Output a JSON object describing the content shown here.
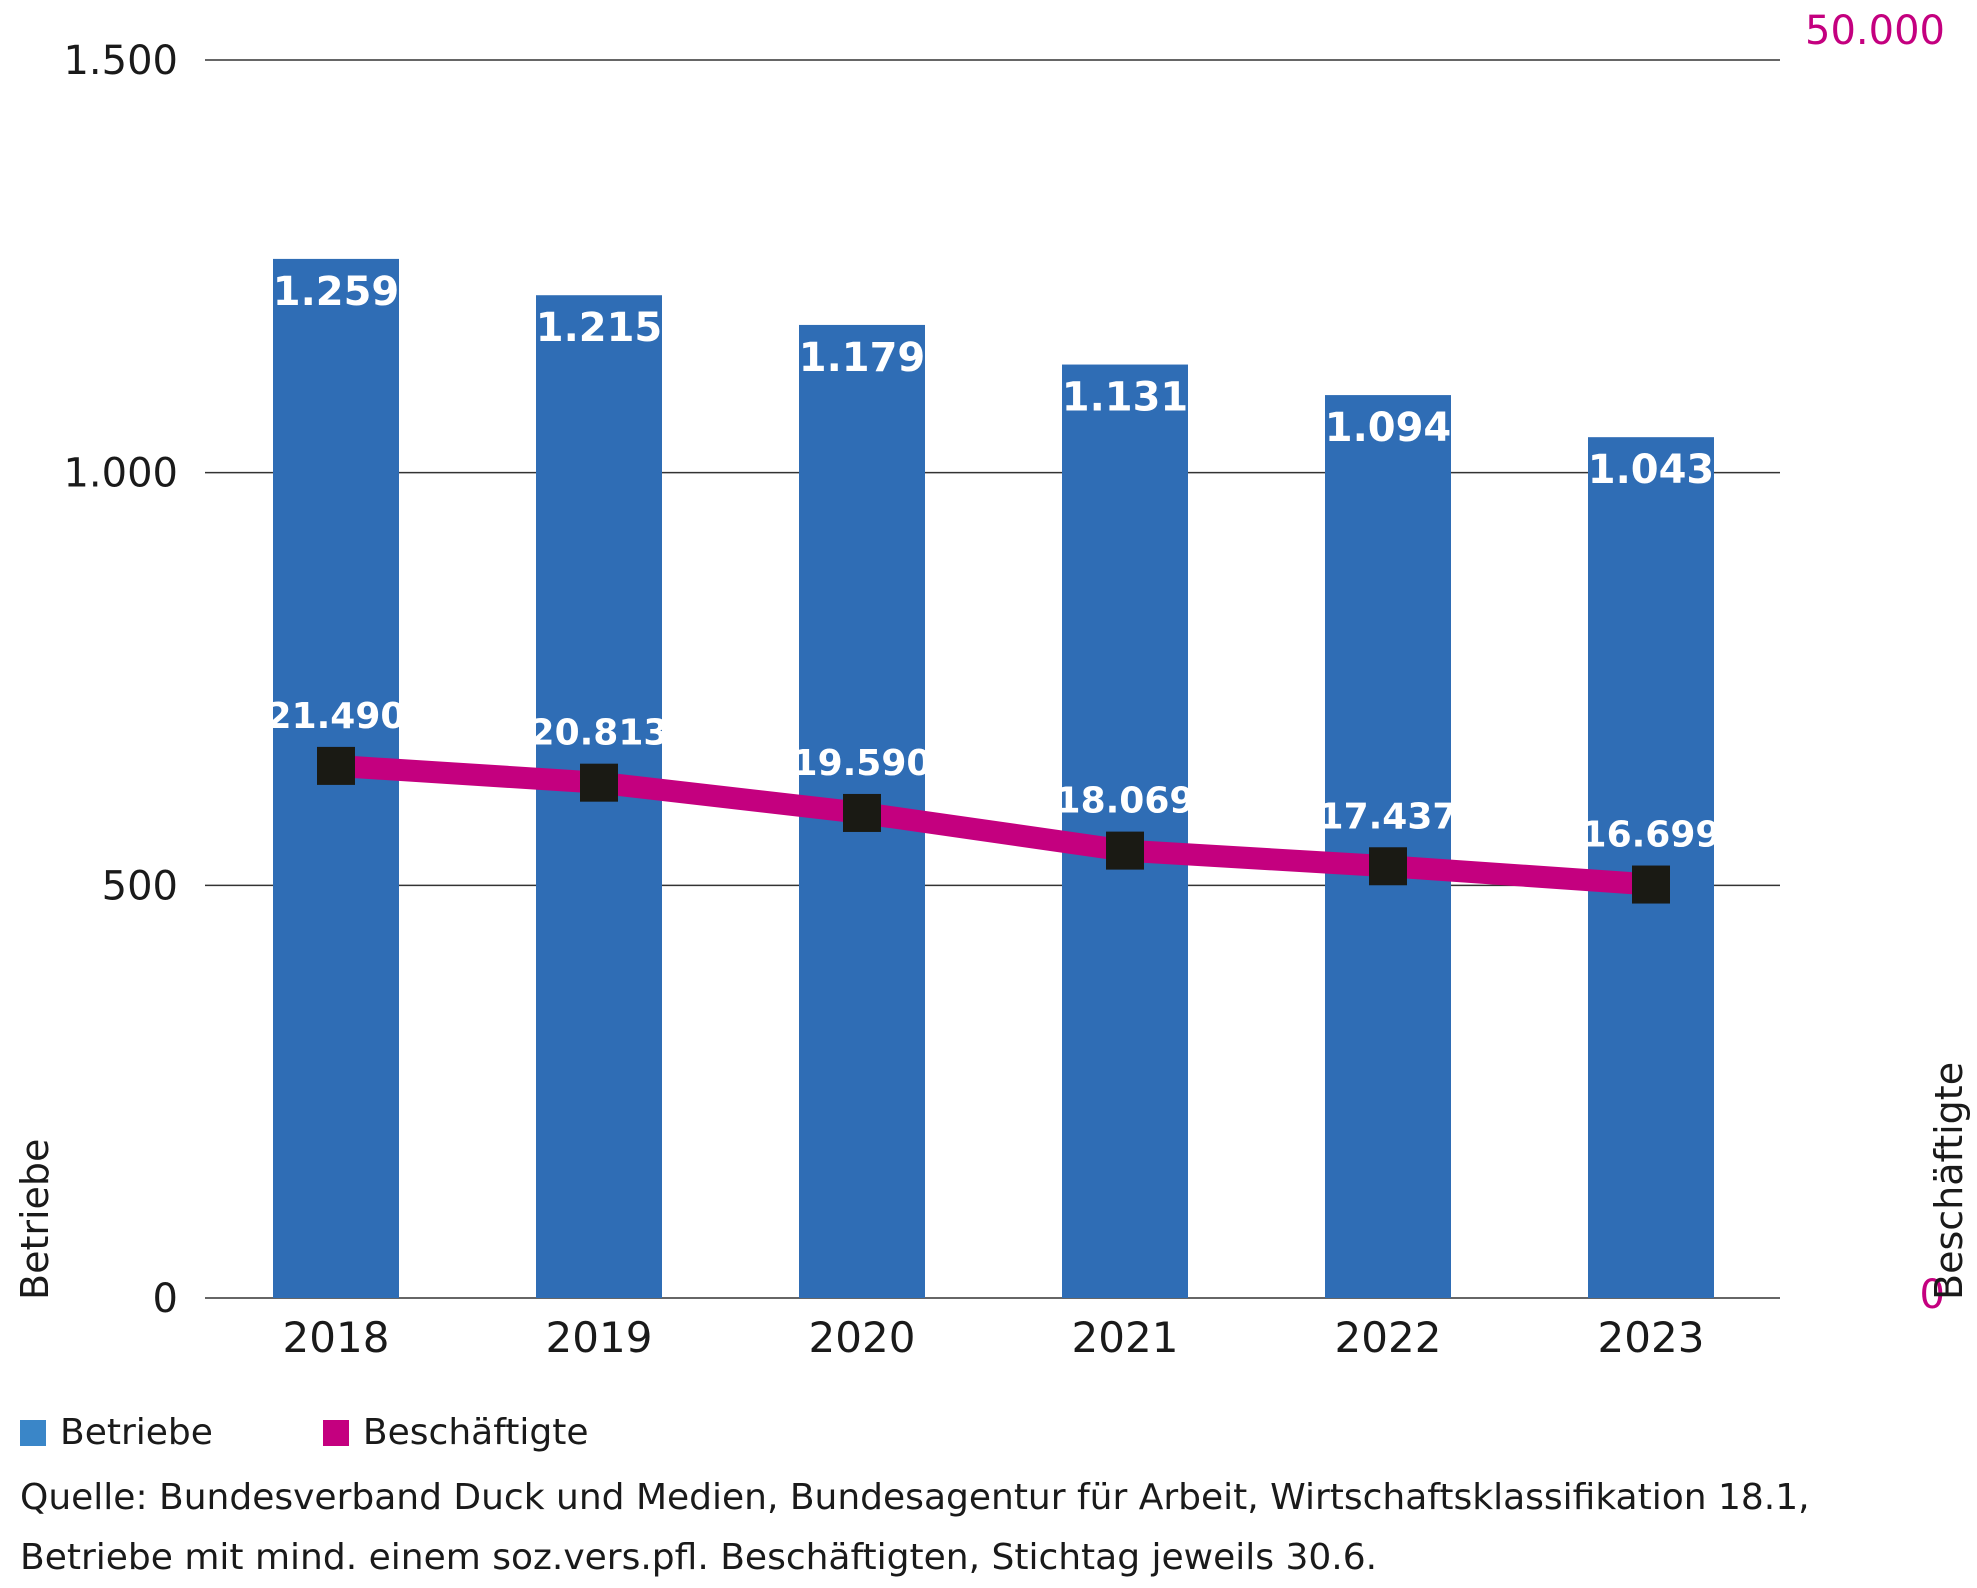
{
  "chart_data": {
    "type": "bar",
    "categories": [
      "2018",
      "2019",
      "2020",
      "2021",
      "2022",
      "2023"
    ],
    "series": [
      {
        "name": "Betriebe",
        "type": "bar",
        "axis": "left",
        "values": [
          1259,
          1215,
          1179,
          1131,
          1094,
          1043
        ],
        "labels": [
          "1.259",
          "1.215",
          "1.179",
          "1.131",
          "1.094",
          "1.043"
        ],
        "color": "#2f6db5"
      },
      {
        "name": "Beschäftigte",
        "type": "line",
        "axis": "right",
        "values": [
          21490,
          20813,
          19590,
          18069,
          17437,
          16699
        ],
        "labels": [
          "21.490",
          "20.813",
          "19.590",
          "18.069",
          "17.437",
          "16.699"
        ],
        "color": "#c4007f"
      }
    ],
    "y_left": {
      "label": "Betriebe",
      "range": [
        0,
        1500
      ],
      "ticks": [
        0,
        500,
        1000,
        1500
      ],
      "tick_labels": [
        "0",
        "500",
        "1.000",
        "1.500"
      ]
    },
    "y_right": {
      "label": "Beschäftigte",
      "range": [
        0,
        50000
      ],
      "tick_labels": [
        "0",
        "50.000"
      ]
    },
    "grid": true,
    "legend": "bottom-left",
    "marker_color": "#1a1a14"
  },
  "legend": {
    "betriebe": "Betriebe",
    "beschaeftigte": "Beschäftigte"
  },
  "source": {
    "line1": "Quelle: Bundesverband Duck und Medien, Bundesagentur für Arbeit, Wirtschaftsklassifikation 18.1,",
    "line2": "Betriebe mit mind. einem soz.vers.pfl. Beschäftigten, Stichtag jeweils 30.6."
  }
}
